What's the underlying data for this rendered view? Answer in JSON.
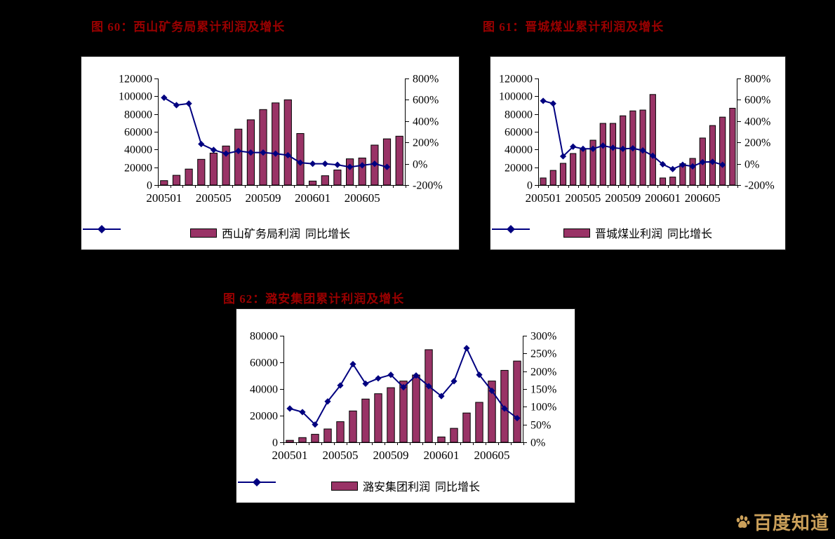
{
  "colors": {
    "bar": "#993366",
    "line": "#000080",
    "title": "#990000",
    "watermark": "#CBA05A",
    "page_background": "#000000",
    "chart_background": "#FFFFFF"
  },
  "watermark": {
    "text": "百度知道",
    "icon": "baidu-paw-icon"
  },
  "chart_data": [
    {
      "type": "bar+line",
      "title": "图 60：西山矿务局累计利润及增长",
      "grid": false,
      "legend_position": "bottom",
      "categories": [
        "200501",
        "200502",
        "200503",
        "200504",
        "200505",
        "200506",
        "200507",
        "200508",
        "200509",
        "200510",
        "200511",
        "200512",
        "200601",
        "200602",
        "200603",
        "200604",
        "200605",
        "200606",
        "200607",
        "200608"
      ],
      "x_tick_labels": [
        "200501",
        "200505",
        "200509",
        "200601",
        "200605"
      ],
      "x_tick_indices": [
        0,
        4,
        8,
        12,
        16
      ],
      "left_axis": {
        "min": 0,
        "max": 120000,
        "step": 20000,
        "labels": [
          "0",
          "20000",
          "40000",
          "60000",
          "80000",
          "100000",
          "120000"
        ]
      },
      "right_axis": {
        "min": -200,
        "max": 800,
        "step": 200,
        "unit": "%",
        "labels": [
          "-200%",
          "0%",
          "200%",
          "400%",
          "600%",
          "800%"
        ]
      },
      "series": [
        {
          "name": "西山矿务局利润",
          "type": "bar",
          "axis": "left",
          "values": [
            5000,
            11000,
            18000,
            29000,
            36000,
            44000,
            63000,
            73500,
            85000,
            92500,
            96000,
            58000,
            4500,
            10500,
            17000,
            29500,
            30500,
            45000,
            52000,
            55000
          ]
        },
        {
          "name": "同比增长",
          "type": "line",
          "axis": "right",
          "values": [
            620,
            550,
            565,
            185,
            130,
            95,
            120,
            105,
            105,
            95,
            80,
            10,
            0,
            0,
            -10,
            -30,
            -15,
            0,
            -30,
            null
          ]
        }
      ]
    },
    {
      "type": "bar+line",
      "title": "图 61：晋城煤业累计利润及增长",
      "grid": false,
      "legend_position": "bottom",
      "categories": [
        "200501",
        "200502",
        "200503",
        "200504",
        "200505",
        "200506",
        "200507",
        "200508",
        "200509",
        "200510",
        "200511",
        "200512",
        "200601",
        "200602",
        "200603",
        "200604",
        "200605",
        "200606",
        "200607",
        "200608"
      ],
      "x_tick_labels": [
        "200501",
        "200505",
        "200509",
        "200601",
        "200605"
      ],
      "x_tick_indices": [
        0,
        4,
        8,
        12,
        16
      ],
      "left_axis": {
        "min": 0,
        "max": 120000,
        "step": 20000,
        "labels": [
          "0",
          "20000",
          "40000",
          "60000",
          "80000",
          "100000",
          "120000"
        ]
      },
      "right_axis": {
        "min": -200,
        "max": 800,
        "step": 200,
        "unit": "%",
        "labels": [
          "-200%",
          "0%",
          "200%",
          "400%",
          "600%",
          "800%"
        ]
      },
      "series": [
        {
          "name": "晋城煤业利润",
          "type": "bar",
          "axis": "left",
          "values": [
            8000,
            16500,
            24500,
            35500,
            41000,
            50500,
            69500,
            69500,
            78000,
            83500,
            84500,
            102000,
            8000,
            9000,
            24000,
            30000,
            53000,
            67000,
            76500,
            86500
          ]
        },
        {
          "name": "同比增长",
          "type": "line",
          "axis": "right",
          "values": [
            590,
            565,
            70,
            160,
            140,
            140,
            170,
            150,
            140,
            145,
            125,
            75,
            -5,
            -50,
            -10,
            -25,
            15,
            18,
            -10,
            null
          ]
        }
      ]
    },
    {
      "type": "bar+line",
      "title": "图 62：潞安集团累计利润及增长",
      "grid": false,
      "legend_position": "bottom",
      "categories": [
        "200501",
        "200502",
        "200503",
        "200504",
        "200505",
        "200506",
        "200507",
        "200508",
        "200509",
        "200510",
        "200511",
        "200512",
        "200601",
        "200602",
        "200603",
        "200604",
        "200605",
        "200606",
        "200607"
      ],
      "x_tick_labels": [
        "200501",
        "200505",
        "200509",
        "200601",
        "200605"
      ],
      "x_tick_indices": [
        0,
        4,
        8,
        12,
        16
      ],
      "left_axis": {
        "min": 0,
        "max": 80000,
        "step": 20000,
        "labels": [
          "0",
          "20000",
          "40000",
          "60000",
          "80000"
        ]
      },
      "right_axis": {
        "min": 0,
        "max": 300,
        "step": 50,
        "unit": "%",
        "labels": [
          "0%",
          "50%",
          "100%",
          "150%",
          "200%",
          "250%",
          "300%"
        ]
      },
      "series": [
        {
          "name": "潞安集团利润",
          "type": "bar",
          "axis": "left",
          "values": [
            1500,
            3500,
            6000,
            10000,
            15500,
            23500,
            32500,
            36500,
            41000,
            46000,
            50500,
            69500,
            4000,
            10500,
            22000,
            30000,
            46000,
            54000,
            61000
          ]
        },
        {
          "name": "同比增长",
          "type": "line",
          "axis": "right",
          "values": [
            95,
            85,
            50,
            115,
            160,
            220,
            165,
            180,
            190,
            155,
            188,
            158,
            130,
            172,
            265,
            190,
            145,
            95,
            68
          ]
        }
      ]
    }
  ]
}
